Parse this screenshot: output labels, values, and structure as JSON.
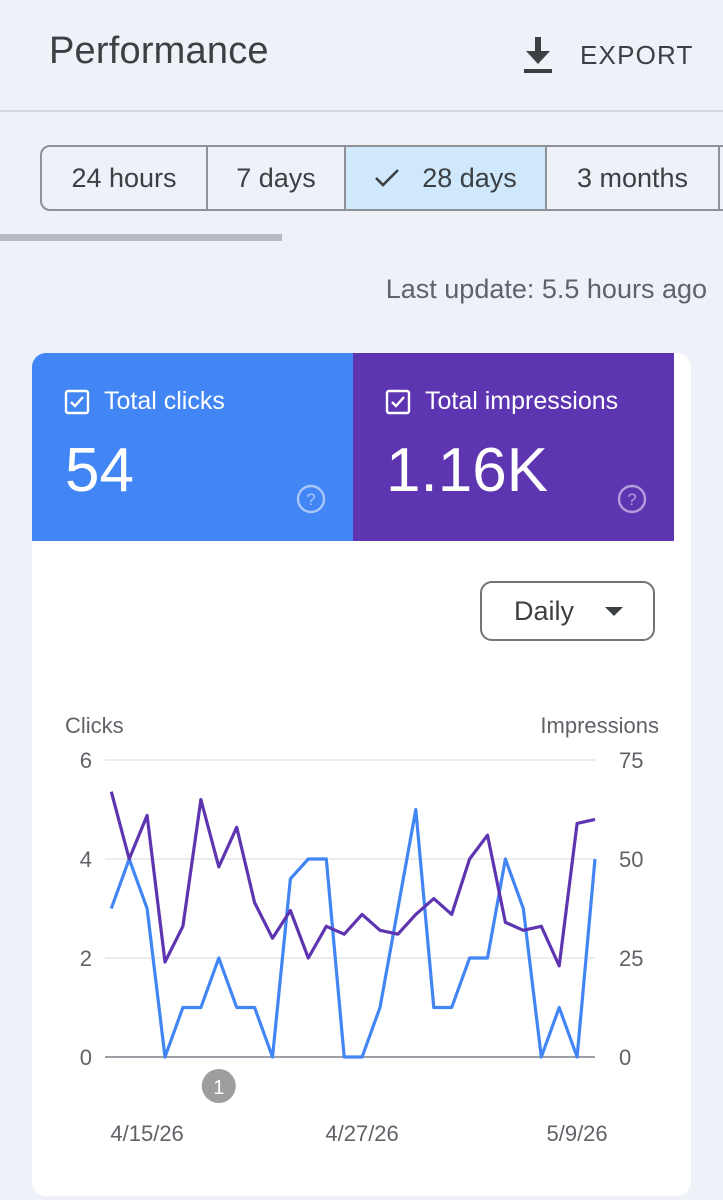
{
  "header": {
    "title": "Performance",
    "export_label": "EXPORT",
    "export_icon": "download-icon"
  },
  "range": {
    "options": [
      {
        "label": "24 hours",
        "selected": false
      },
      {
        "label": "7 days",
        "selected": false
      },
      {
        "label": "28 days",
        "selected": true
      },
      {
        "label": "3 months",
        "selected": false
      }
    ]
  },
  "status": {
    "last_update": "Last update: 5.5 hours ago"
  },
  "metrics": {
    "clicks": {
      "label": "Total clicks",
      "value": "54",
      "color": "#4285f4",
      "checked": true
    },
    "impressions": {
      "label": "Total impressions",
      "value": "1.16K",
      "color": "#5e35b1",
      "checked": true
    }
  },
  "granularity": {
    "selected": "Daily"
  },
  "chart_data": {
    "type": "line",
    "x": [
      "4/13/26",
      "4/14/26",
      "4/15/26",
      "4/16/26",
      "4/17/26",
      "4/18/26",
      "4/19/26",
      "4/20/26",
      "4/21/26",
      "4/22/26",
      "4/23/26",
      "4/24/26",
      "4/25/26",
      "4/26/26",
      "4/27/26",
      "4/28/26",
      "4/29/26",
      "4/30/26",
      "5/1/26",
      "5/2/26",
      "5/3/26",
      "5/4/26",
      "5/5/26",
      "5/6/26",
      "5/7/26",
      "5/8/26",
      "5/9/26",
      "5/10/26"
    ],
    "x_tick_labels": [
      "4/15/26",
      "4/27/26",
      "5/9/26"
    ],
    "x_tick_values": [
      "4/15/26",
      "4/27/26",
      "5/9/26"
    ],
    "left_axis": {
      "label": "Clicks",
      "ticks": [
        0,
        2,
        4,
        6
      ],
      "range": [
        0,
        6
      ]
    },
    "right_axis": {
      "label": "Impressions",
      "ticks": [
        0,
        25,
        50,
        75
      ],
      "range": [
        0,
        75
      ]
    },
    "grid": true,
    "series": [
      {
        "name": "Clicks",
        "axis": "left",
        "color": "#4285f4",
        "values": [
          3,
          4,
          3,
          0,
          1,
          1,
          2,
          1,
          1,
          0,
          3.6,
          4,
          4,
          0,
          0,
          1,
          3,
          5,
          1,
          1,
          2,
          2,
          4,
          3,
          0,
          1,
          0,
          4
        ]
      },
      {
        "name": "Impressions",
        "axis": "right",
        "color": "#5e35b1",
        "values": [
          67,
          50,
          61,
          24,
          33,
          65,
          48,
          58,
          39,
          30,
          37,
          25,
          33,
          31,
          36,
          32,
          31,
          36,
          40,
          36,
          50,
          56,
          34,
          32,
          33,
          23,
          59,
          60
        ]
      }
    ],
    "annotations": [
      {
        "x": "4/19/26",
        "label": "1"
      }
    ]
  }
}
